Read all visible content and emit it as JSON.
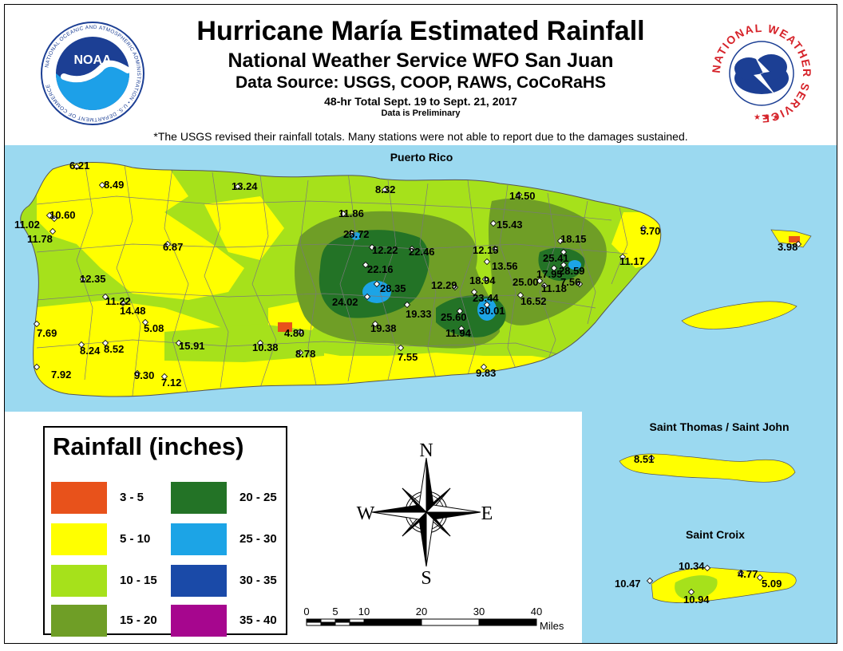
{
  "title": "Hurricane María Estimated Rainfall",
  "subtitle": "National Weather Service WFO San Juan",
  "data_source": "Data Source: USGS, COOP, RAWS, CoCoRaHS",
  "period": "48-hr Total Sept. 19 to Sept. 21, 2017",
  "preliminary": "Data is Preliminary",
  "note": "*The USGS revised their rainfall totals. Many stations were not able to report due to the damages sustained.",
  "logos": {
    "noaa_text": "NOAA",
    "noaa_ring": "NATIONAL OCEANIC AND ATMOSPHERIC ADMINISTRATION • U.S. DEPARTMENT OF COMMERCE",
    "nws_ring": "NATIONAL WEATHER SERVICE"
  },
  "region_labels": {
    "puerto_rico": "Puerto Rico",
    "st_thomas_st_john": "Saint Thomas / Saint John",
    "st_croix": "Saint Croix"
  },
  "colors": {
    "ocean": "#9bd9f0",
    "r3_5": "#e8521b",
    "r5_10": "#ffff00",
    "r10_15": "#a6e11b",
    "r15_20": "#6f9e26",
    "r20_25": "#237326",
    "r25_30": "#1ca4e6",
    "r30_35": "#1a4aa8",
    "r35_40": "#a6068e"
  },
  "legend": {
    "title": "Rainfall (inches)",
    "items": [
      {
        "label": "3 - 5",
        "color": "#e8521b"
      },
      {
        "label": "5 - 10",
        "color": "#ffff00"
      },
      {
        "label": "10 - 15",
        "color": "#a6e11b"
      },
      {
        "label": "15 - 20",
        "color": "#6f9e26"
      },
      {
        "label": "20 - 25",
        "color": "#237326"
      },
      {
        "label": "25 - 30",
        "color": "#1ca4e6"
      },
      {
        "label": "30 - 35",
        "color": "#1a4aa8"
      },
      {
        "label": "35 - 40",
        "color": "#a6068e"
      }
    ]
  },
  "compass": {
    "n": "N",
    "s": "S",
    "e": "E",
    "w": "W"
  },
  "scale": {
    "ticks": [
      "0",
      "5",
      "10",
      "20",
      "30",
      "40"
    ],
    "unit": "Miles"
  },
  "stations": [
    {
      "name": "pr-01",
      "value": "6.21"
    },
    {
      "name": "pr-02",
      "value": "8.49"
    },
    {
      "name": "pr-03",
      "value": "13.24"
    },
    {
      "name": "pr-04",
      "value": "8.32"
    },
    {
      "name": "pr-05",
      "value": "14.50"
    },
    {
      "name": "pr-06",
      "value": "11.02"
    },
    {
      "name": "pr-07",
      "value": "10.60"
    },
    {
      "name": "pr-08",
      "value": "11.86"
    },
    {
      "name": "pr-09",
      "value": "15.43"
    },
    {
      "name": "pr-10",
      "value": "5.70"
    },
    {
      "name": "pr-11",
      "value": "11.78"
    },
    {
      "name": "pr-12",
      "value": "25.72"
    },
    {
      "name": "pr-13",
      "value": "6.87"
    },
    {
      "name": "pr-14",
      "value": "12.22"
    },
    {
      "name": "pr-15",
      "value": "22.46"
    },
    {
      "name": "pr-16",
      "value": "12.15"
    },
    {
      "name": "pr-17",
      "value": "18.15"
    },
    {
      "name": "pr-18",
      "value": "25.41"
    },
    {
      "name": "pr-19",
      "value": "3.98"
    },
    {
      "name": "pr-20",
      "value": "22.16"
    },
    {
      "name": "pr-21",
      "value": "13.56"
    },
    {
      "name": "pr-22",
      "value": "28.59"
    },
    {
      "name": "pr-23",
      "value": "11.17"
    },
    {
      "name": "pr-24",
      "value": "12.35"
    },
    {
      "name": "pr-25",
      "value": "17.95"
    },
    {
      "name": "pr-26",
      "value": "18.94"
    },
    {
      "name": "pr-27",
      "value": "25.00"
    },
    {
      "name": "pr-28",
      "value": "7.56"
    },
    {
      "name": "pr-29",
      "value": "28.35"
    },
    {
      "name": "pr-30",
      "value": "12.29"
    },
    {
      "name": "pr-31",
      "value": "11.18"
    },
    {
      "name": "pr-32",
      "value": "11.22"
    },
    {
      "name": "pr-33",
      "value": "23.44"
    },
    {
      "name": "pr-34",
      "value": "24.02"
    },
    {
      "name": "pr-35",
      "value": "16.52"
    },
    {
      "name": "pr-36",
      "value": "14.48"
    },
    {
      "name": "pr-37",
      "value": "19.33"
    },
    {
      "name": "pr-38",
      "value": "30.01"
    },
    {
      "name": "pr-39",
      "value": "25.60"
    },
    {
      "name": "pr-40",
      "value": "7.69"
    },
    {
      "name": "pr-41",
      "value": "5.08"
    },
    {
      "name": "pr-42",
      "value": "4.80"
    },
    {
      "name": "pr-43",
      "value": "19.38"
    },
    {
      "name": "pr-44",
      "value": "11.94"
    },
    {
      "name": "pr-45",
      "value": "15.91"
    },
    {
      "name": "pr-46",
      "value": "8.24"
    },
    {
      "name": "pr-47",
      "value": "8.52"
    },
    {
      "name": "pr-48",
      "value": "10.38"
    },
    {
      "name": "pr-49",
      "value": "8.78"
    },
    {
      "name": "pr-50",
      "value": "7.55"
    },
    {
      "name": "pr-51",
      "value": "7.92"
    },
    {
      "name": "pr-52",
      "value": "9.30"
    },
    {
      "name": "pr-53",
      "value": "7.12"
    },
    {
      "name": "pr-54",
      "value": "9.83"
    },
    {
      "name": "vi-01",
      "value": "8.51"
    },
    {
      "name": "vi-02",
      "value": "10.34"
    },
    {
      "name": "vi-03",
      "value": "4.77"
    },
    {
      "name": "vi-04",
      "value": "10.47"
    },
    {
      "name": "vi-05",
      "value": "5.09"
    },
    {
      "name": "vi-06",
      "value": "10.94"
    }
  ]
}
